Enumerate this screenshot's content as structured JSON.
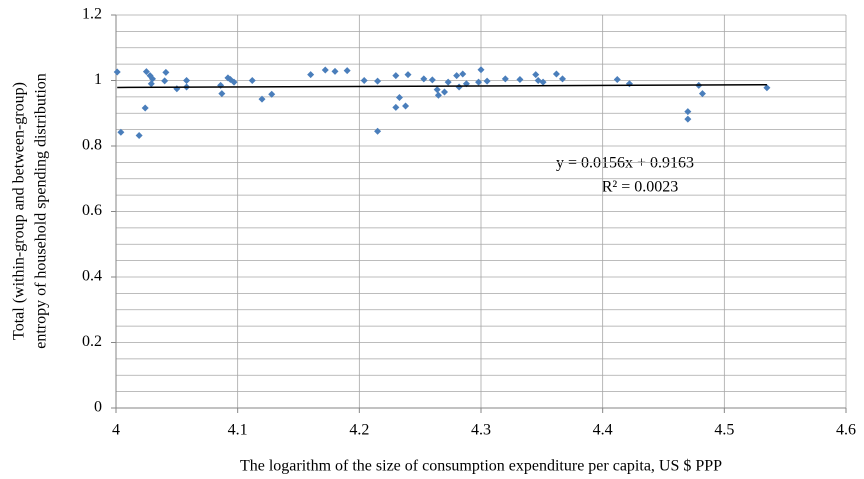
{
  "chart_data": {
    "type": "scatter",
    "x_label": "The logarithm of the size of consumption expenditure per capita, US $ PPP",
    "y_label": [
      "Total (within-group and between-group)",
      "entropy of household  spending distribution"
    ],
    "x": [
      4.001,
      4.004,
      4.019,
      4.024,
      4.025,
      4.028,
      4.029,
      4.03,
      4.04,
      4.041,
      4.05,
      4.058,
      4.058,
      4.086,
      4.087,
      4.092,
      4.094,
      4.097,
      4.112,
      4.12,
      4.128,
      4.16,
      4.172,
      4.18,
      4.19,
      4.204,
      4.215,
      4.215,
      4.23,
      4.23,
      4.233,
      4.238,
      4.24,
      4.253,
      4.26,
      4.264,
      4.265,
      4.27,
      4.273,
      4.28,
      4.282,
      4.285,
      4.288,
      4.298,
      4.3,
      4.305,
      4.32,
      4.332,
      4.345,
      4.347,
      4.351,
      4.362,
      4.367,
      4.412,
      4.422,
      4.47,
      4.47,
      4.479,
      4.482,
      4.535
    ],
    "values": [
      1.026,
      0.842,
      0.832,
      0.916,
      1.027,
      1.015,
      0.99,
      1.005,
      0.999,
      1.025,
      0.975,
      1.0,
      0.98,
      0.985,
      0.96,
      1.008,
      1.003,
      0.995,
      1.0,
      0.943,
      0.958,
      1.018,
      1.032,
      1.028,
      1.03,
      1.0,
      0.845,
      0.998,
      1.015,
      0.918,
      0.948,
      0.922,
      1.018,
      1.005,
      1.002,
      0.972,
      0.955,
      0.965,
      0.995,
      1.015,
      0.98,
      1.02,
      0.99,
      0.995,
      1.033,
      0.998,
      1.005,
      1.003,
      1.018,
      1.0,
      0.995,
      1.02,
      1.005,
      1.003,
      0.99,
      0.905,
      0.882,
      0.985,
      0.96,
      0.978
    ],
    "color": "#4a7ebb",
    "trendline": {
      "slope": 0.0156,
      "intercept": 0.9163,
      "color": "#000000",
      "equation": "y = 0.0156x + 0.9163",
      "r2": "R² = 0.0023"
    },
    "xlim": [
      4,
      4.6
    ],
    "xticks": [
      4,
      4.1,
      4.2,
      4.3,
      4.4,
      4.5,
      4.6
    ],
    "ylim": [
      0,
      1.2
    ],
    "yticks": [
      0,
      0.2,
      0.4,
      0.6,
      0.8,
      1,
      1.2
    ],
    "y_minor_grid": [
      0.05,
      0.1,
      0.15,
      0.25,
      0.3,
      0.35,
      0.45,
      0.5,
      0.55,
      0.65,
      0.7,
      0.75,
      0.85,
      0.9,
      0.95,
      1.05,
      1.1,
      1.15
    ],
    "grid": true
  }
}
